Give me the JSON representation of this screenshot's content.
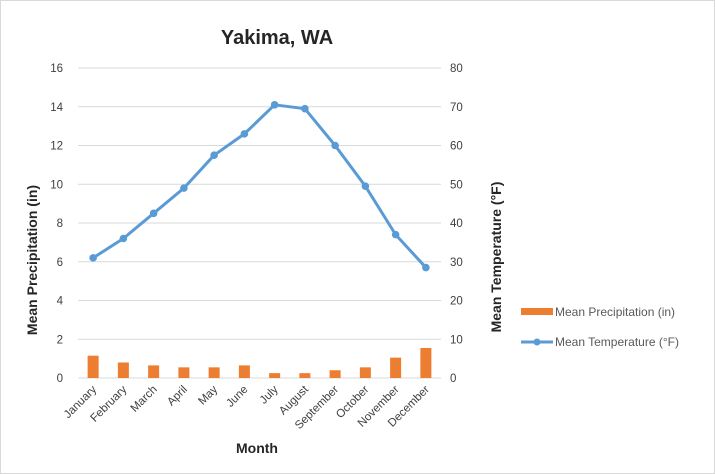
{
  "chart_data": {
    "type": "bar",
    "title": "Yakima, WA",
    "xlabel": "Month",
    "ylabel": "Mean Precipitation (in)",
    "y2label": "Mean Temperature (°F)",
    "categories": [
      "January",
      "February",
      "March",
      "April",
      "May",
      "June",
      "July",
      "August",
      "September",
      "October",
      "November",
      "December"
    ],
    "ylim": [
      0,
      16
    ],
    "yticks": [
      0,
      2,
      4,
      6,
      8,
      10,
      12,
      14,
      16
    ],
    "y2lim": [
      0,
      80
    ],
    "y2ticks": [
      0,
      10,
      20,
      30,
      40,
      50,
      60,
      70,
      80
    ],
    "grid": true,
    "legend_position": "right",
    "series": [
      {
        "name": "Mean Precipitation (in)",
        "type": "bar",
        "axis": "left",
        "color": "#ED7D31",
        "values": [
          1.15,
          0.8,
          0.65,
          0.55,
          0.55,
          0.65,
          0.25,
          0.25,
          0.4,
          0.55,
          1.05,
          1.55
        ]
      },
      {
        "name": "Mean Temperature (°F)",
        "type": "line",
        "axis": "right",
        "color": "#5B9BD5",
        "values": [
          31,
          36,
          42.5,
          49,
          57.5,
          63,
          70.5,
          69.5,
          60,
          49.5,
          37,
          28.5
        ]
      }
    ]
  }
}
